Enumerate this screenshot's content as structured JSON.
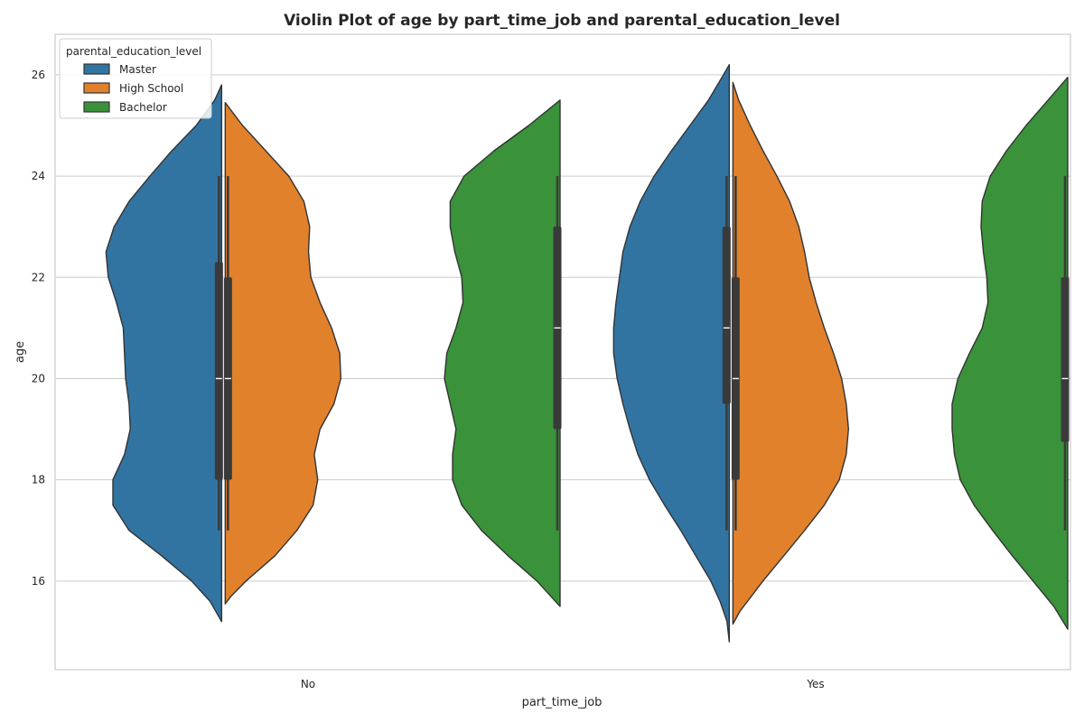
{
  "chart_data": {
    "type": "violin",
    "title": "Violin Plot of age by part_time_job and parental_education_level",
    "xlabel": "part_time_job",
    "ylabel": "age",
    "categories": [
      "No",
      "Yes"
    ],
    "ylim": [
      14.25,
      26.8
    ],
    "yticks": [
      16,
      18,
      20,
      22,
      24,
      26
    ],
    "grid": true,
    "legend": {
      "title": "parental_education_level",
      "placement": "top-left"
    },
    "series": [
      {
        "name": "Master",
        "color": "#3274a1",
        "side": "left",
        "groups": [
          {
            "category": "No",
            "min": 15.2,
            "max": 25.8,
            "whisker": [
              17,
              24
            ],
            "box": [
              18,
              22.3
            ],
            "median": 20,
            "density": [
              [
                15.2,
                0.0
              ],
              [
                15.6,
                0.1
              ],
              [
                16.0,
                0.26
              ],
              [
                16.5,
                0.52
              ],
              [
                17.0,
                0.8
              ],
              [
                17.5,
                0.94
              ],
              [
                18.0,
                0.94
              ],
              [
                18.5,
                0.84
              ],
              [
                19.0,
                0.79
              ],
              [
                19.5,
                0.8
              ],
              [
                20.0,
                0.83
              ],
              [
                20.5,
                0.84
              ],
              [
                21.0,
                0.85
              ],
              [
                21.5,
                0.91
              ],
              [
                22.0,
                0.98
              ],
              [
                22.5,
                1.0
              ],
              [
                23.0,
                0.93
              ],
              [
                23.5,
                0.8
              ],
              [
                24.0,
                0.62
              ],
              [
                24.5,
                0.43
              ],
              [
                25.0,
                0.22
              ],
              [
                25.5,
                0.06
              ],
              [
                25.8,
                0.0
              ]
            ]
          },
          {
            "category": "Yes",
            "min": 14.8,
            "max": 26.2,
            "whisker": [
              17,
              24
            ],
            "box": [
              19.5,
              23
            ],
            "median": 21,
            "density": [
              [
                14.8,
                0.0
              ],
              [
                15.2,
                0.02
              ],
              [
                15.6,
                0.08
              ],
              [
                16.0,
                0.16
              ],
              [
                16.5,
                0.29
              ],
              [
                17.0,
                0.42
              ],
              [
                17.5,
                0.56
              ],
              [
                18.0,
                0.69
              ],
              [
                18.5,
                0.79
              ],
              [
                19.0,
                0.86
              ],
              [
                19.5,
                0.92
              ],
              [
                20.0,
                0.97
              ],
              [
                20.5,
                1.0
              ],
              [
                21.0,
                1.0
              ],
              [
                21.5,
                0.98
              ],
              [
                22.0,
                0.95
              ],
              [
                22.5,
                0.92
              ],
              [
                23.0,
                0.86
              ],
              [
                23.5,
                0.77
              ],
              [
                24.0,
                0.65
              ],
              [
                24.5,
                0.5
              ],
              [
                25.0,
                0.34
              ],
              [
                25.5,
                0.18
              ],
              [
                26.0,
                0.05
              ],
              [
                26.2,
                0.0
              ]
            ]
          }
        ]
      },
      {
        "name": "High School",
        "color": "#e1812c",
        "side": "right",
        "groups": [
          {
            "category": "No",
            "min": 15.55,
            "max": 25.45,
            "whisker": [
              17,
              24
            ],
            "box": [
              18,
              22
            ],
            "median": 20,
            "density": [
              [
                15.55,
                0.0
              ],
              [
                15.7,
                0.05
              ],
              [
                16.0,
                0.18
              ],
              [
                16.5,
                0.43
              ],
              [
                17.0,
                0.62
              ],
              [
                17.5,
                0.76
              ],
              [
                18.0,
                0.8
              ],
              [
                18.5,
                0.77
              ],
              [
                19.0,
                0.82
              ],
              [
                19.5,
                0.94
              ],
              [
                20.0,
                1.0
              ],
              [
                20.5,
                0.99
              ],
              [
                21.0,
                0.92
              ],
              [
                21.5,
                0.82
              ],
              [
                22.0,
                0.74
              ],
              [
                22.5,
                0.72
              ],
              [
                23.0,
                0.73
              ],
              [
                23.5,
                0.68
              ],
              [
                24.0,
                0.55
              ],
              [
                24.5,
                0.35
              ],
              [
                25.0,
                0.15
              ],
              [
                25.45,
                0.0
              ]
            ]
          },
          {
            "category": "Yes",
            "min": 15.15,
            "max": 25.85,
            "whisker": [
              17,
              24
            ],
            "box": [
              18,
              22
            ],
            "median": 20,
            "density": [
              [
                15.15,
                0.0
              ],
              [
                15.4,
                0.06
              ],
              [
                16.0,
                0.26
              ],
              [
                16.5,
                0.44
              ],
              [
                17.0,
                0.62
              ],
              [
                17.5,
                0.79
              ],
              [
                18.0,
                0.92
              ],
              [
                18.5,
                0.98
              ],
              [
                19.0,
                1.0
              ],
              [
                19.5,
                0.98
              ],
              [
                20.0,
                0.94
              ],
              [
                20.5,
                0.87
              ],
              [
                21.0,
                0.79
              ],
              [
                21.5,
                0.72
              ],
              [
                22.0,
                0.66
              ],
              [
                22.5,
                0.62
              ],
              [
                23.0,
                0.57
              ],
              [
                23.5,
                0.49
              ],
              [
                24.0,
                0.38
              ],
              [
                24.5,
                0.26
              ],
              [
                25.0,
                0.15
              ],
              [
                25.5,
                0.05
              ],
              [
                25.85,
                0.0
              ]
            ]
          }
        ]
      },
      {
        "name": "Bachelor",
        "color": "#3a923a",
        "side": "left",
        "groups": [
          {
            "category": "No",
            "min": 15.5,
            "max": 25.5,
            "whisker": [
              17,
              24
            ],
            "box": [
              19,
              23
            ],
            "median": 21,
            "density": [
              [
                15.5,
                0.0
              ],
              [
                16.0,
                0.2
              ],
              [
                16.5,
                0.45
              ],
              [
                17.0,
                0.68
              ],
              [
                17.5,
                0.85
              ],
              [
                18.0,
                0.93
              ],
              [
                18.5,
                0.93
              ],
              [
                19.0,
                0.9
              ],
              [
                19.5,
                0.95
              ],
              [
                20.0,
                1.0
              ],
              [
                20.5,
                0.98
              ],
              [
                21.0,
                0.9
              ],
              [
                21.5,
                0.84
              ],
              [
                22.0,
                0.85
              ],
              [
                22.5,
                0.91
              ],
              [
                23.0,
                0.95
              ],
              [
                23.5,
                0.95
              ],
              [
                24.0,
                0.83
              ],
              [
                24.5,
                0.57
              ],
              [
                25.0,
                0.27
              ],
              [
                25.5,
                0.0
              ]
            ]
          },
          {
            "category": "Yes",
            "min": 15.05,
            "max": 25.95,
            "whisker": [
              17,
              24
            ],
            "box": [
              18.75,
              22
            ],
            "median": 20,
            "density": [
              [
                15.05,
                0.0
              ],
              [
                15.5,
                0.12
              ],
              [
                16.0,
                0.3
              ],
              [
                16.5,
                0.48
              ],
              [
                17.0,
                0.65
              ],
              [
                17.5,
                0.81
              ],
              [
                18.0,
                0.93
              ],
              [
                18.5,
                0.98
              ],
              [
                19.0,
                1.0
              ],
              [
                19.5,
                1.0
              ],
              [
                20.0,
                0.95
              ],
              [
                20.5,
                0.85
              ],
              [
                21.0,
                0.74
              ],
              [
                21.5,
                0.69
              ],
              [
                22.0,
                0.7
              ],
              [
                22.5,
                0.73
              ],
              [
                23.0,
                0.75
              ],
              [
                23.5,
                0.74
              ],
              [
                24.0,
                0.67
              ],
              [
                24.5,
                0.53
              ],
              [
                25.0,
                0.36
              ],
              [
                25.5,
                0.17
              ],
              [
                25.95,
                0.0
              ]
            ]
          }
        ]
      }
    ]
  }
}
